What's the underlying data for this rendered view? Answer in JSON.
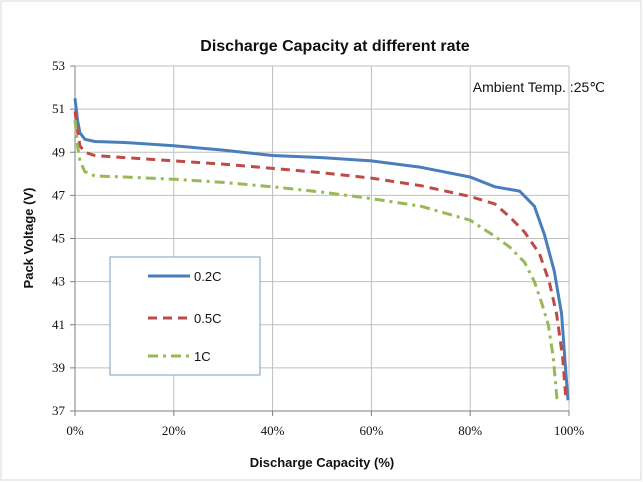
{
  "chart_data": {
    "type": "line",
    "title": "Discharge Capacity at different rate",
    "xlabel": "Discharge Capacity (%)",
    "ylabel": "Pack Voltage (V)",
    "annotation": "Ambient Temp. :25℃",
    "xlim": [
      0,
      100
    ],
    "ylim": [
      37,
      53
    ],
    "x_ticks": [
      "0%",
      "20%",
      "40%",
      "60%",
      "80%",
      "100%"
    ],
    "y_ticks": [
      "37",
      "39",
      "41",
      "43",
      "45",
      "47",
      "49",
      "51",
      "53"
    ],
    "grid": true,
    "legend_position": "left",
    "series": [
      {
        "name": "0.2C",
        "color": "#4a7ebb",
        "style": "solid",
        "points": [
          [
            0,
            51.5
          ],
          [
            0.5,
            50.5
          ],
          [
            1,
            49.9
          ],
          [
            2,
            49.6
          ],
          [
            4,
            49.5
          ],
          [
            10,
            49.45
          ],
          [
            20,
            49.3
          ],
          [
            30,
            49.1
          ],
          [
            40,
            48.85
          ],
          [
            50,
            48.75
          ],
          [
            60,
            48.6
          ],
          [
            70,
            48.3
          ],
          [
            80,
            47.85
          ],
          [
            85,
            47.4
          ],
          [
            90,
            47.2
          ],
          [
            93,
            46.5
          ],
          [
            95,
            45.2
          ],
          [
            97,
            43.5
          ],
          [
            98.5,
            41.5
          ],
          [
            99.3,
            39.0
          ],
          [
            99.8,
            37.5
          ]
        ]
      },
      {
        "name": "0.5C",
        "color": "#be4b48",
        "style": "dash",
        "points": [
          [
            0,
            50.9
          ],
          [
            0.5,
            50.0
          ],
          [
            1,
            49.3
          ],
          [
            2,
            49.0
          ],
          [
            4,
            48.85
          ],
          [
            10,
            48.75
          ],
          [
            20,
            48.6
          ],
          [
            30,
            48.45
          ],
          [
            40,
            48.25
          ],
          [
            50,
            48.05
          ],
          [
            60,
            47.8
          ],
          [
            70,
            47.45
          ],
          [
            80,
            46.95
          ],
          [
            85,
            46.6
          ],
          [
            88,
            46.0
          ],
          [
            91,
            45.3
          ],
          [
            94,
            44.3
          ],
          [
            96,
            43.0
          ],
          [
            97.5,
            41.5
          ],
          [
            98.7,
            39.5
          ],
          [
            99.4,
            37.5
          ]
        ]
      },
      {
        "name": "1C",
        "color": "#98b954",
        "style": "dashdot",
        "points": [
          [
            0,
            50.5
          ],
          [
            0.5,
            49.3
          ],
          [
            1,
            48.6
          ],
          [
            2,
            48.1
          ],
          [
            4,
            47.9
          ],
          [
            10,
            47.85
          ],
          [
            20,
            47.75
          ],
          [
            30,
            47.6
          ],
          [
            40,
            47.4
          ],
          [
            50,
            47.15
          ],
          [
            60,
            46.85
          ],
          [
            70,
            46.5
          ],
          [
            80,
            45.85
          ],
          [
            85,
            45.1
          ],
          [
            88,
            44.6
          ],
          [
            91,
            43.9
          ],
          [
            93,
            43.0
          ],
          [
            94.5,
            42.0
          ],
          [
            95.8,
            41.0
          ],
          [
            96.8,
            39.5
          ],
          [
            97.6,
            37.5
          ]
        ]
      }
    ]
  }
}
